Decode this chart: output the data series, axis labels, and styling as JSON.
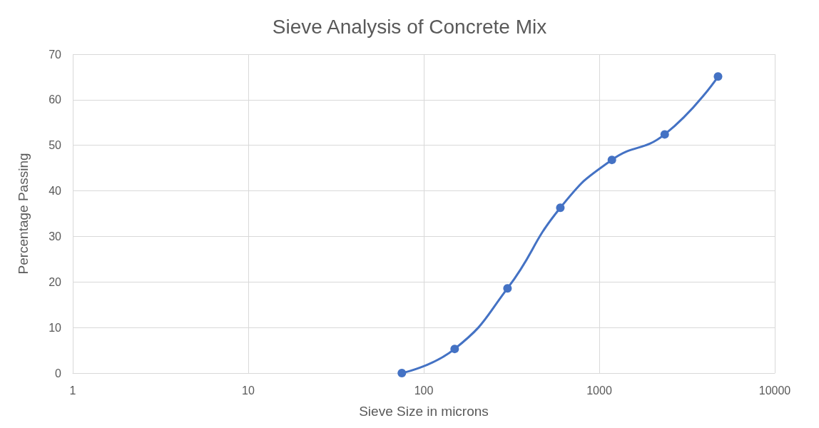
{
  "chart_data": {
    "type": "line",
    "title": "Sieve Analysis of Concrete Mix",
    "xlabel": "Sieve Size in microns",
    "ylabel": "Percentage Passing",
    "x": [
      75,
      150,
      300,
      600,
      1180,
      2360,
      4750
    ],
    "series": [
      {
        "color": "#4472c4",
        "values": [
          0,
          5.3,
          18.6,
          36.3,
          46.8,
          52.4,
          65.1
        ]
      }
    ],
    "log": "x",
    "xlim": [
      1,
      10000
    ],
    "xticks": [
      1,
      10,
      100,
      1000,
      10000
    ],
    "ylim": [
      0,
      70
    ],
    "yticks": [
      0,
      10,
      20,
      30,
      40,
      50,
      60,
      70
    ],
    "grid": true,
    "marker": "circle",
    "line_style": "solid"
  }
}
